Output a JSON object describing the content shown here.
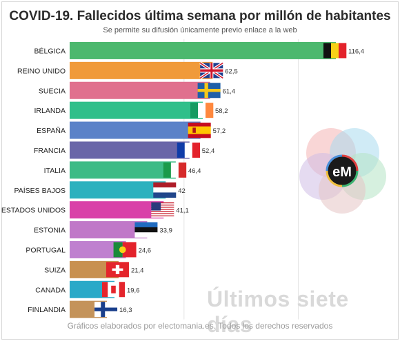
{
  "title": "COVID-19. Fallecidos última semana por millón de habitantes",
  "subtitle": "Se permite su difusión únicamente previo enlace a la web",
  "footer": "Gráficos elaborados por electomania.es. Todos los derechos reservados",
  "watermark": "Últimos siete días",
  "logo_text": "eM",
  "chart_data": {
    "type": "bar",
    "orientation": "horizontal",
    "categories": [
      "BÉLGICA",
      "REINO UNIDO",
      "SUECIA",
      "IRLANDA",
      "ESPAÑA",
      "FRANCIA",
      "ITALIA",
      "PAÍSES BAJOS",
      "ESTADOS UNIDOS",
      "ESTONIA",
      "PORTUGAL",
      "SUIZA",
      "CANADA",
      "FINLANDIA"
    ],
    "values": [
      116.4,
      62.5,
      61.4,
      58.2,
      57.2,
      52.4,
      46.4,
      42,
      41.1,
      33.9,
      24.6,
      21.4,
      19.6,
      16.3
    ],
    "value_labels": [
      "116,4",
      "62,5",
      "61,4",
      "58,2",
      "57,2",
      "52,4",
      "46,4",
      "42",
      "41,1",
      "33,9",
      "24,6",
      "21,4",
      "19,6",
      "16,3"
    ],
    "bar_colors": [
      "#4cb86e",
      "#f09a3a",
      "#e0708e",
      "#2fbf8a",
      "#5b82c8",
      "#6a66a8",
      "#3dbb86",
      "#2db1be",
      "#d941a8",
      "#c078c8",
      "#bf80cf",
      "#c89050",
      "#2aa9c8",
      "#c4935a"
    ],
    "flags": [
      "belgium",
      "uk",
      "sweden",
      "ireland",
      "spain",
      "france",
      "italy",
      "netherlands",
      "usa",
      "estonia",
      "portugal",
      "switzerland",
      "canada",
      "finland"
    ],
    "xlim": [
      0,
      116.4
    ],
    "grid": true
  }
}
